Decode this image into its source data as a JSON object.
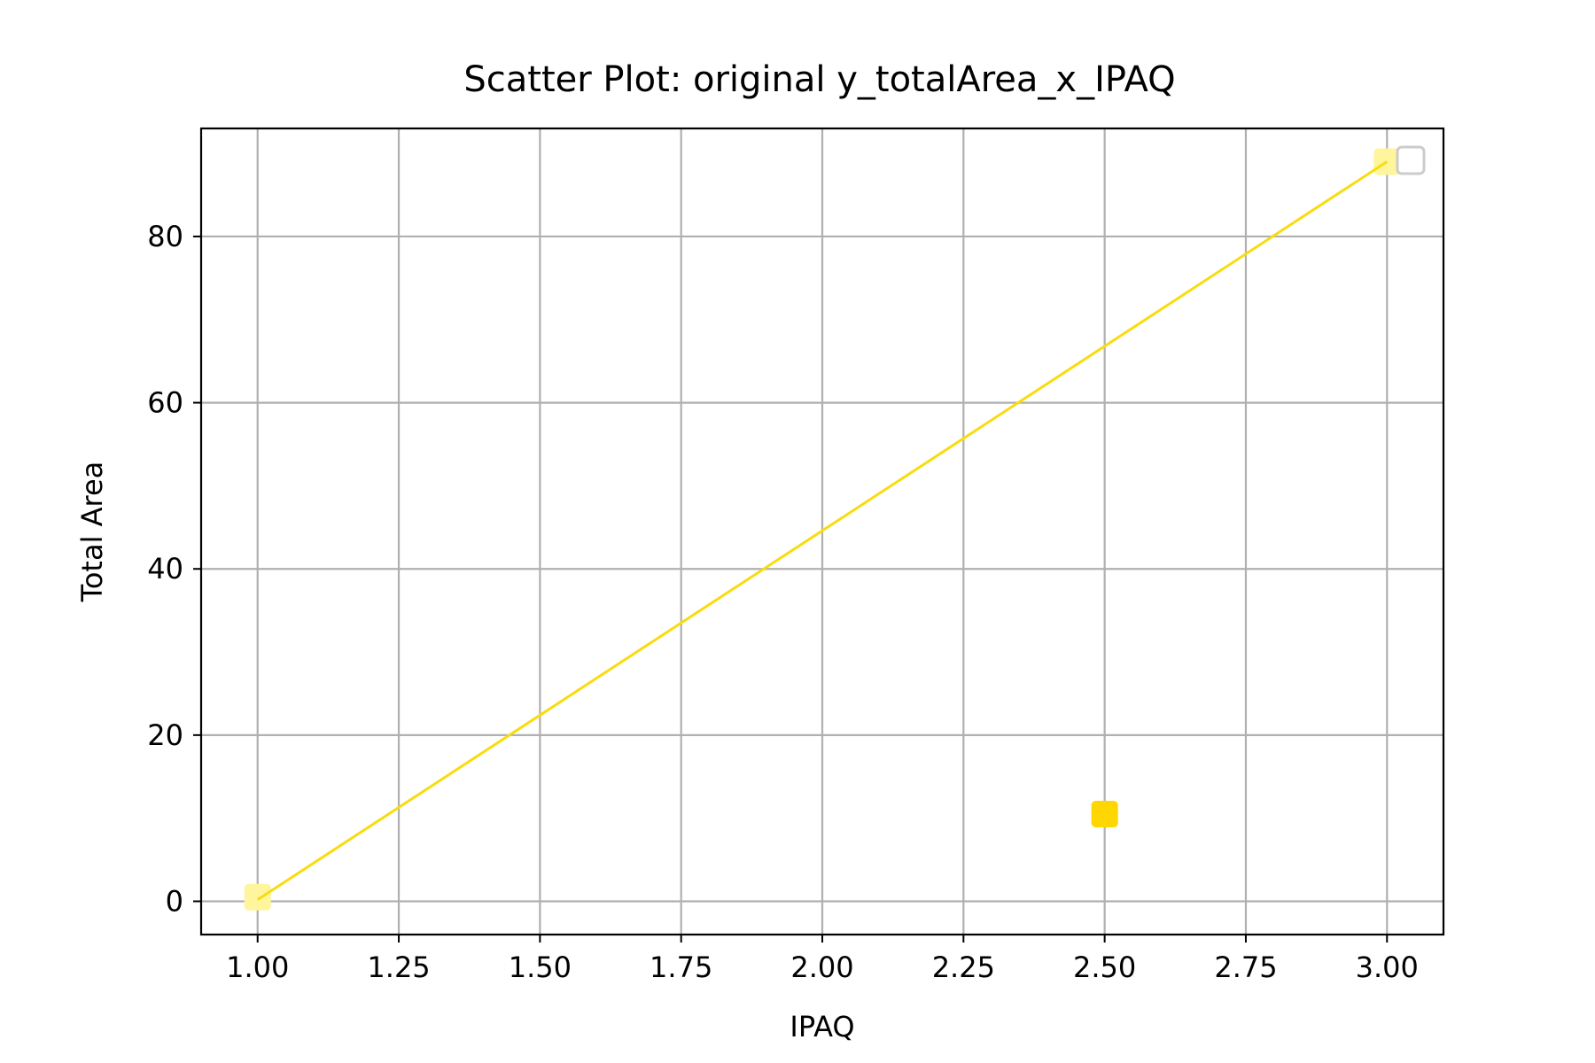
{
  "chart_data": {
    "type": "scatter",
    "title": "Scatter Plot: original y_totalArea_x_IPAQ",
    "xlabel": "IPAQ",
    "ylabel": "Total Area",
    "xlim": [
      0.9,
      3.1
    ],
    "ylim": [
      -4,
      93
    ],
    "x_ticks": [
      1.0,
      1.25,
      1.5,
      1.75,
      2.0,
      2.25,
      2.5,
      2.75,
      3.0
    ],
    "x_tick_labels": [
      "1.00",
      "1.25",
      "1.50",
      "1.75",
      "2.00",
      "2.25",
      "2.50",
      "2.75",
      "3.00"
    ],
    "y_ticks": [
      0,
      20,
      40,
      60,
      80
    ],
    "y_tick_labels": [
      "0",
      "20",
      "40",
      "60",
      "80"
    ],
    "grid": true,
    "legend": "top-right",
    "series": [
      {
        "marker": "square",
        "points": [
          {
            "x": 1.0,
            "y": 0.5,
            "color": "#fff59d"
          },
          {
            "x": 2.5,
            "y": 10.5,
            "color": "#ffd600"
          },
          {
            "x": 3.0,
            "y": 89,
            "color": "#fff59d"
          }
        ]
      }
    ],
    "fit_line": {
      "x": [
        1.0,
        3.0
      ],
      "y": [
        0.2,
        89
      ],
      "color": "#f9dc0f"
    }
  }
}
